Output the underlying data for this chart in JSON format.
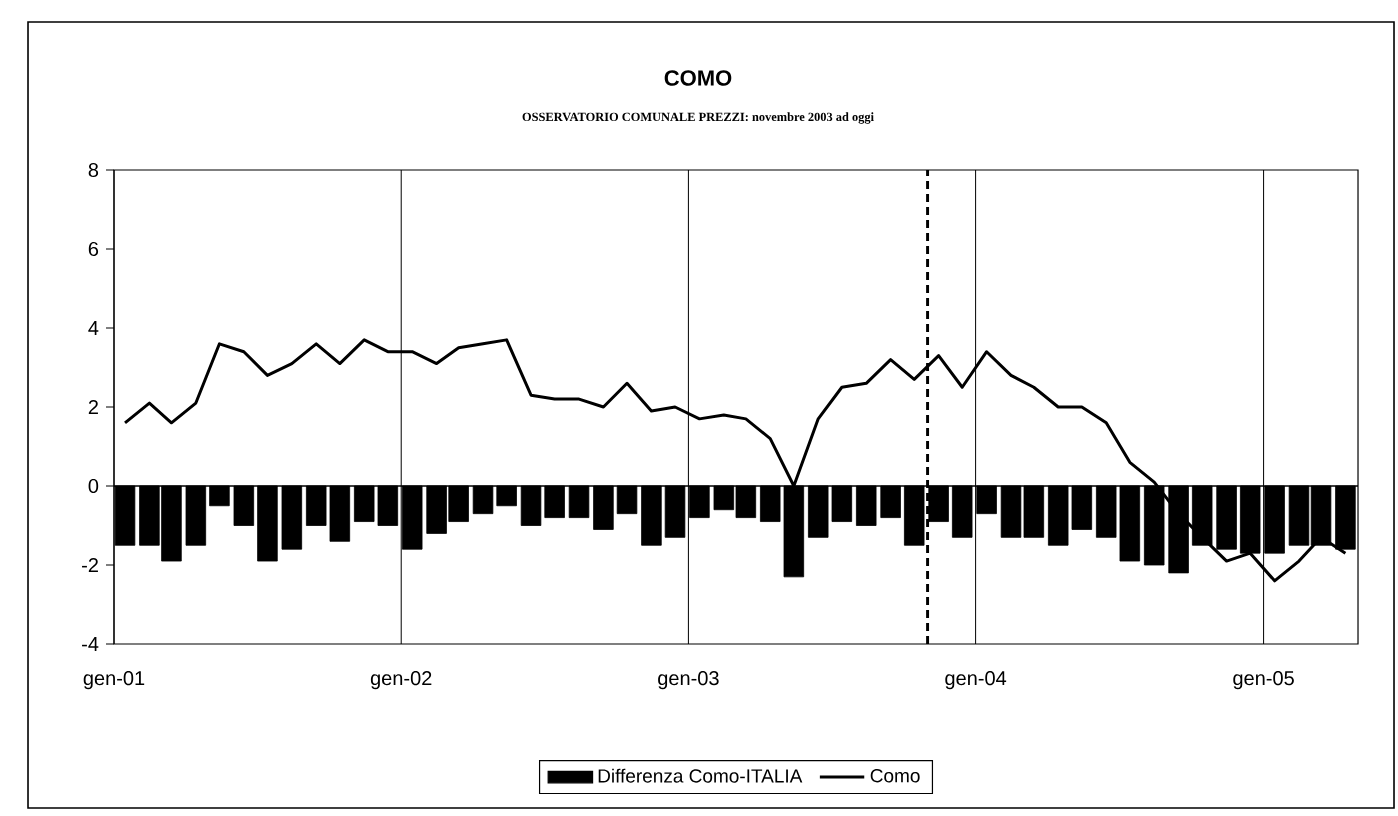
{
  "chart_data": {
    "type": "bar",
    "title": "COMO",
    "subtitle": "OSSERVATORIO COMUNALE PREZZI: novembre 2003 ad oggi",
    "x": [
      "2001-01-15",
      "2001-02-15",
      "2001-03-15",
      "2001-04-15",
      "2001-05-15",
      "2001-06-15",
      "2001-07-15",
      "2001-08-15",
      "2001-09-15",
      "2001-10-15",
      "2001-11-15",
      "2001-12-15",
      "2002-01-15",
      "2002-02-15",
      "2002-03-15",
      "2002-04-15",
      "2002-05-15",
      "2002-06-15",
      "2002-07-15",
      "2002-08-15",
      "2002-09-15",
      "2002-10-15",
      "2002-11-15",
      "2002-12-15",
      "2003-01-15",
      "2003-02-15",
      "2003-03-15",
      "2003-04-15",
      "2003-05-15",
      "2003-06-15",
      "2003-07-15",
      "2003-08-15",
      "2003-09-15",
      "2003-10-15",
      "2003-11-15",
      "2003-12-15",
      "2004-01-15",
      "2004-02-15",
      "2004-03-15",
      "2004-04-15",
      "2004-05-15",
      "2004-06-15",
      "2004-07-15",
      "2004-08-15",
      "2004-09-15",
      "2004-10-15",
      "2004-11-15",
      "2004-12-15",
      "2005-01-15",
      "2005-02-15",
      "2005-03-15",
      "2005-04-15"
    ],
    "xlim": [
      "2001-01",
      "2005-05"
    ],
    "xticks": [
      {
        "value": "2001-01",
        "label": "gen-01"
      },
      {
        "value": "2002-01",
        "label": "gen-02"
      },
      {
        "value": "2003-01",
        "label": "gen-03"
      },
      {
        "value": "2004-01",
        "label": "gen-04"
      },
      {
        "value": "2005-01",
        "label": "gen-05"
      }
    ],
    "ylim": [
      -4,
      8
    ],
    "yticks": [
      -4,
      -2,
      0,
      2,
      4,
      6,
      8
    ],
    "grid": "x",
    "legend": "bottom",
    "ref_lines": [
      {
        "axis": "x",
        "value": "2003-11",
        "color": "#000000",
        "line_style": "dashed"
      },
      {
        "axis": "y",
        "value": 0,
        "color": "#000000"
      }
    ],
    "series": [
      {
        "name": "Differenza Como-ITALIA",
        "color": "#000000",
        "values": [
          -1.5,
          -1.5,
          -1.9,
          -1.5,
          -0.5,
          -1.0,
          -1.9,
          -1.6,
          -1.0,
          -1.4,
          -0.9,
          -1.0,
          -1.6,
          -1.2,
          -0.9,
          -0.7,
          -0.5,
          -1.0,
          -0.8,
          -0.8,
          -1.1,
          -0.7,
          -1.5,
          -1.3,
          -0.8,
          -0.6,
          -0.8,
          -0.9,
          -2.3,
          -1.3,
          -0.9,
          -1.0,
          -0.8,
          -1.5,
          -0.9,
          -1.3,
          -0.7,
          -1.3,
          -1.3,
          -1.5,
          -1.1,
          -1.3,
          -1.9,
          -2.0,
          -2.2,
          -1.5,
          -1.6,
          -1.7,
          -1.7,
          -1.5,
          -1.5,
          -1.6
        ]
      },
      {
        "name": "Como",
        "type": "line",
        "color": "#000000",
        "line_style": "solid",
        "values": [
          1.6,
          2.1,
          1.6,
          2.1,
          3.6,
          3.4,
          2.8,
          3.1,
          3.6,
          3.1,
          3.7,
          3.4,
          3.4,
          3.1,
          3.5,
          3.6,
          3.7,
          2.3,
          2.2,
          2.2,
          2.0,
          2.6,
          1.9,
          2.0,
          1.7,
          1.8,
          1.7,
          1.2,
          0.0,
          1.7,
          2.5,
          2.6,
          3.2,
          2.7,
          3.3,
          2.5,
          3.4,
          2.8,
          2.5,
          2.0,
          2.0,
          1.6,
          0.6,
          0.1,
          -0.7,
          -1.3,
          -1.9,
          -1.7,
          -2.4,
          -1.9,
          -1.3,
          -1.7
        ]
      }
    ]
  }
}
